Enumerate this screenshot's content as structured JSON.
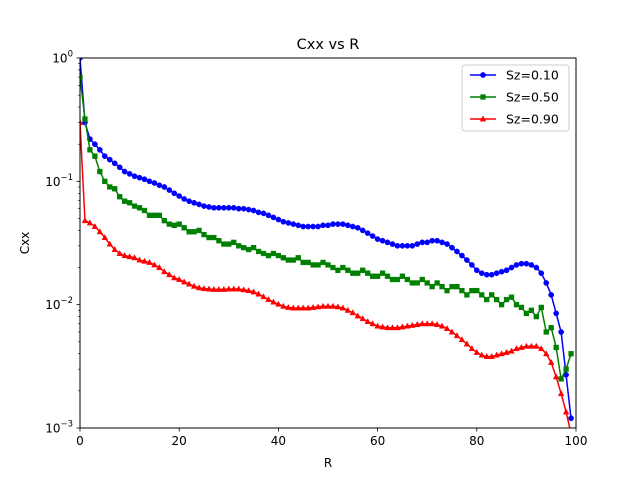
{
  "chart_data": {
    "type": "line",
    "title": "Cxx vs R",
    "xlabel": "R",
    "ylabel": "Cxx",
    "xlim": [
      0,
      100
    ],
    "ylim": [
      0.001,
      1
    ],
    "yscale": "log",
    "grid": false,
    "legend_position": "top-right",
    "x_ticks": [
      0,
      20,
      40,
      60,
      80,
      100
    ],
    "x_tick_labels": [
      "0",
      "20",
      "40",
      "60",
      "80",
      "100"
    ],
    "y_ticks": [
      0.001,
      0.01,
      0.1,
      1
    ],
    "y_tick_labels": [
      {
        "base": "10",
        "exp": "−3"
      },
      {
        "base": "10",
        "exp": "−2"
      },
      {
        "base": "10",
        "exp": "−1"
      },
      {
        "base": "10",
        "exp": "0"
      }
    ],
    "series": [
      {
        "name": "Sz=0.10",
        "color": "#0000ff",
        "marker": "circle",
        "x": [
          0,
          1,
          2,
          3,
          4,
          5,
          6,
          7,
          8,
          9,
          10,
          11,
          12,
          13,
          14,
          15,
          16,
          17,
          18,
          19,
          20,
          21,
          22,
          23,
          24,
          25,
          26,
          27,
          28,
          29,
          30,
          31,
          32,
          33,
          34,
          35,
          36,
          37,
          38,
          39,
          40,
          41,
          42,
          43,
          44,
          45,
          46,
          47,
          48,
          49,
          50,
          51,
          52,
          53,
          54,
          55,
          56,
          57,
          58,
          59,
          60,
          61,
          62,
          63,
          64,
          65,
          66,
          67,
          68,
          69,
          70,
          71,
          72,
          73,
          74,
          75,
          76,
          77,
          78,
          79,
          80,
          81,
          82,
          83,
          84,
          85,
          86,
          87,
          88,
          89,
          90,
          91,
          92,
          93,
          94,
          95,
          96,
          97,
          98,
          99
        ],
        "y": [
          1.0,
          0.3,
          0.22,
          0.2,
          0.18,
          0.16,
          0.15,
          0.14,
          0.13,
          0.12,
          0.115,
          0.11,
          0.107,
          0.104,
          0.1,
          0.097,
          0.093,
          0.09,
          0.085,
          0.08,
          0.076,
          0.072,
          0.069,
          0.067,
          0.065,
          0.063,
          0.062,
          0.061,
          0.061,
          0.061,
          0.061,
          0.061,
          0.06,
          0.06,
          0.059,
          0.058,
          0.056,
          0.055,
          0.053,
          0.051,
          0.049,
          0.047,
          0.046,
          0.045,
          0.044,
          0.043,
          0.043,
          0.043,
          0.043,
          0.044,
          0.044,
          0.045,
          0.045,
          0.045,
          0.044,
          0.043,
          0.042,
          0.04,
          0.038,
          0.036,
          0.034,
          0.033,
          0.032,
          0.031,
          0.03,
          0.03,
          0.03,
          0.03,
          0.031,
          0.032,
          0.032,
          0.033,
          0.033,
          0.032,
          0.031,
          0.029,
          0.027,
          0.025,
          0.023,
          0.021,
          0.019,
          0.018,
          0.0175,
          0.0175,
          0.018,
          0.0185,
          0.019,
          0.02,
          0.021,
          0.0215,
          0.0215,
          0.021,
          0.02,
          0.018,
          0.015,
          0.012,
          0.0085,
          0.006,
          0.0027,
          0.0012
        ]
      },
      {
        "name": "Sz=0.50",
        "color": "#008000",
        "marker": "square",
        "x": [
          0,
          1,
          2,
          3,
          4,
          5,
          6,
          7,
          8,
          9,
          10,
          11,
          12,
          13,
          14,
          15,
          16,
          17,
          18,
          19,
          20,
          21,
          22,
          23,
          24,
          25,
          26,
          27,
          28,
          29,
          30,
          31,
          32,
          33,
          34,
          35,
          36,
          37,
          38,
          39,
          40,
          41,
          42,
          43,
          44,
          45,
          46,
          47,
          48,
          49,
          50,
          51,
          52,
          53,
          54,
          55,
          56,
          57,
          58,
          59,
          60,
          61,
          62,
          63,
          64,
          65,
          66,
          67,
          68,
          69,
          70,
          71,
          72,
          73,
          74,
          75,
          76,
          77,
          78,
          79,
          80,
          81,
          82,
          83,
          84,
          85,
          86,
          87,
          88,
          89,
          90,
          91,
          92,
          93,
          94,
          95,
          96,
          97,
          98,
          99
        ],
        "y": [
          0.7,
          0.32,
          0.18,
          0.16,
          0.12,
          0.1,
          0.09,
          0.087,
          0.075,
          0.069,
          0.067,
          0.063,
          0.061,
          0.058,
          0.053,
          0.053,
          0.053,
          0.048,
          0.045,
          0.044,
          0.045,
          0.042,
          0.039,
          0.039,
          0.04,
          0.037,
          0.035,
          0.035,
          0.033,
          0.031,
          0.031,
          0.032,
          0.03,
          0.029,
          0.028,
          0.029,
          0.027,
          0.026,
          0.025,
          0.026,
          0.025,
          0.024,
          0.023,
          0.023,
          0.024,
          0.022,
          0.022,
          0.021,
          0.021,
          0.022,
          0.021,
          0.02,
          0.019,
          0.02,
          0.019,
          0.018,
          0.018,
          0.019,
          0.018,
          0.017,
          0.017,
          0.018,
          0.017,
          0.016,
          0.016,
          0.017,
          0.016,
          0.015,
          0.015,
          0.016,
          0.015,
          0.014,
          0.015,
          0.014,
          0.013,
          0.014,
          0.014,
          0.013,
          0.012,
          0.013,
          0.013,
          0.012,
          0.011,
          0.012,
          0.011,
          0.01,
          0.011,
          0.0115,
          0.01,
          0.0095,
          0.0085,
          0.009,
          0.008,
          0.0095,
          0.006,
          0.0065,
          0.0045,
          0.0025,
          0.003,
          0.004
        ]
      },
      {
        "name": "Sz=0.90",
        "color": "#ff0000",
        "marker": "triangle",
        "x": [
          0,
          1,
          2,
          3,
          4,
          5,
          6,
          7,
          8,
          9,
          10,
          11,
          12,
          13,
          14,
          15,
          16,
          17,
          18,
          19,
          20,
          21,
          22,
          23,
          24,
          25,
          26,
          27,
          28,
          29,
          30,
          31,
          32,
          33,
          34,
          35,
          36,
          37,
          38,
          39,
          40,
          41,
          42,
          43,
          44,
          45,
          46,
          47,
          48,
          49,
          50,
          51,
          52,
          53,
          54,
          55,
          56,
          57,
          58,
          59,
          60,
          61,
          62,
          63,
          64,
          65,
          66,
          67,
          68,
          69,
          70,
          71,
          72,
          73,
          74,
          75,
          76,
          77,
          78,
          79,
          80,
          81,
          82,
          83,
          84,
          85,
          86,
          87,
          88,
          89,
          90,
          91,
          92,
          93,
          94,
          95,
          96,
          97,
          98,
          99
        ],
        "y": [
          0.3,
          0.048,
          0.046,
          0.043,
          0.039,
          0.035,
          0.031,
          0.028,
          0.026,
          0.025,
          0.0245,
          0.024,
          0.023,
          0.0225,
          0.022,
          0.021,
          0.02,
          0.0185,
          0.0175,
          0.0165,
          0.016,
          0.0153,
          0.0147,
          0.0141,
          0.0137,
          0.0135,
          0.0134,
          0.0133,
          0.0133,
          0.0133,
          0.0134,
          0.0134,
          0.0134,
          0.0132,
          0.013,
          0.0127,
          0.0122,
          0.0116,
          0.011,
          0.0105,
          0.0101,
          0.0097,
          0.0095,
          0.0094,
          0.0094,
          0.0094,
          0.0094,
          0.0095,
          0.0096,
          0.0097,
          0.0097,
          0.0097,
          0.0096,
          0.0094,
          0.009,
          0.0086,
          0.0081,
          0.0077,
          0.0073,
          0.007,
          0.0067,
          0.0066,
          0.0065,
          0.0065,
          0.0065,
          0.0066,
          0.0067,
          0.0068,
          0.0069,
          0.007,
          0.007,
          0.007,
          0.0069,
          0.0067,
          0.0064,
          0.006,
          0.0056,
          0.0052,
          0.0048,
          0.0044,
          0.0041,
          0.0039,
          0.0038,
          0.0038,
          0.0039,
          0.004,
          0.0041,
          0.0042,
          0.0044,
          0.0045,
          0.0046,
          0.0046,
          0.0046,
          0.0044,
          0.004,
          0.0034,
          0.0026,
          0.0019,
          0.00135,
          0.0009
        ]
      }
    ]
  }
}
